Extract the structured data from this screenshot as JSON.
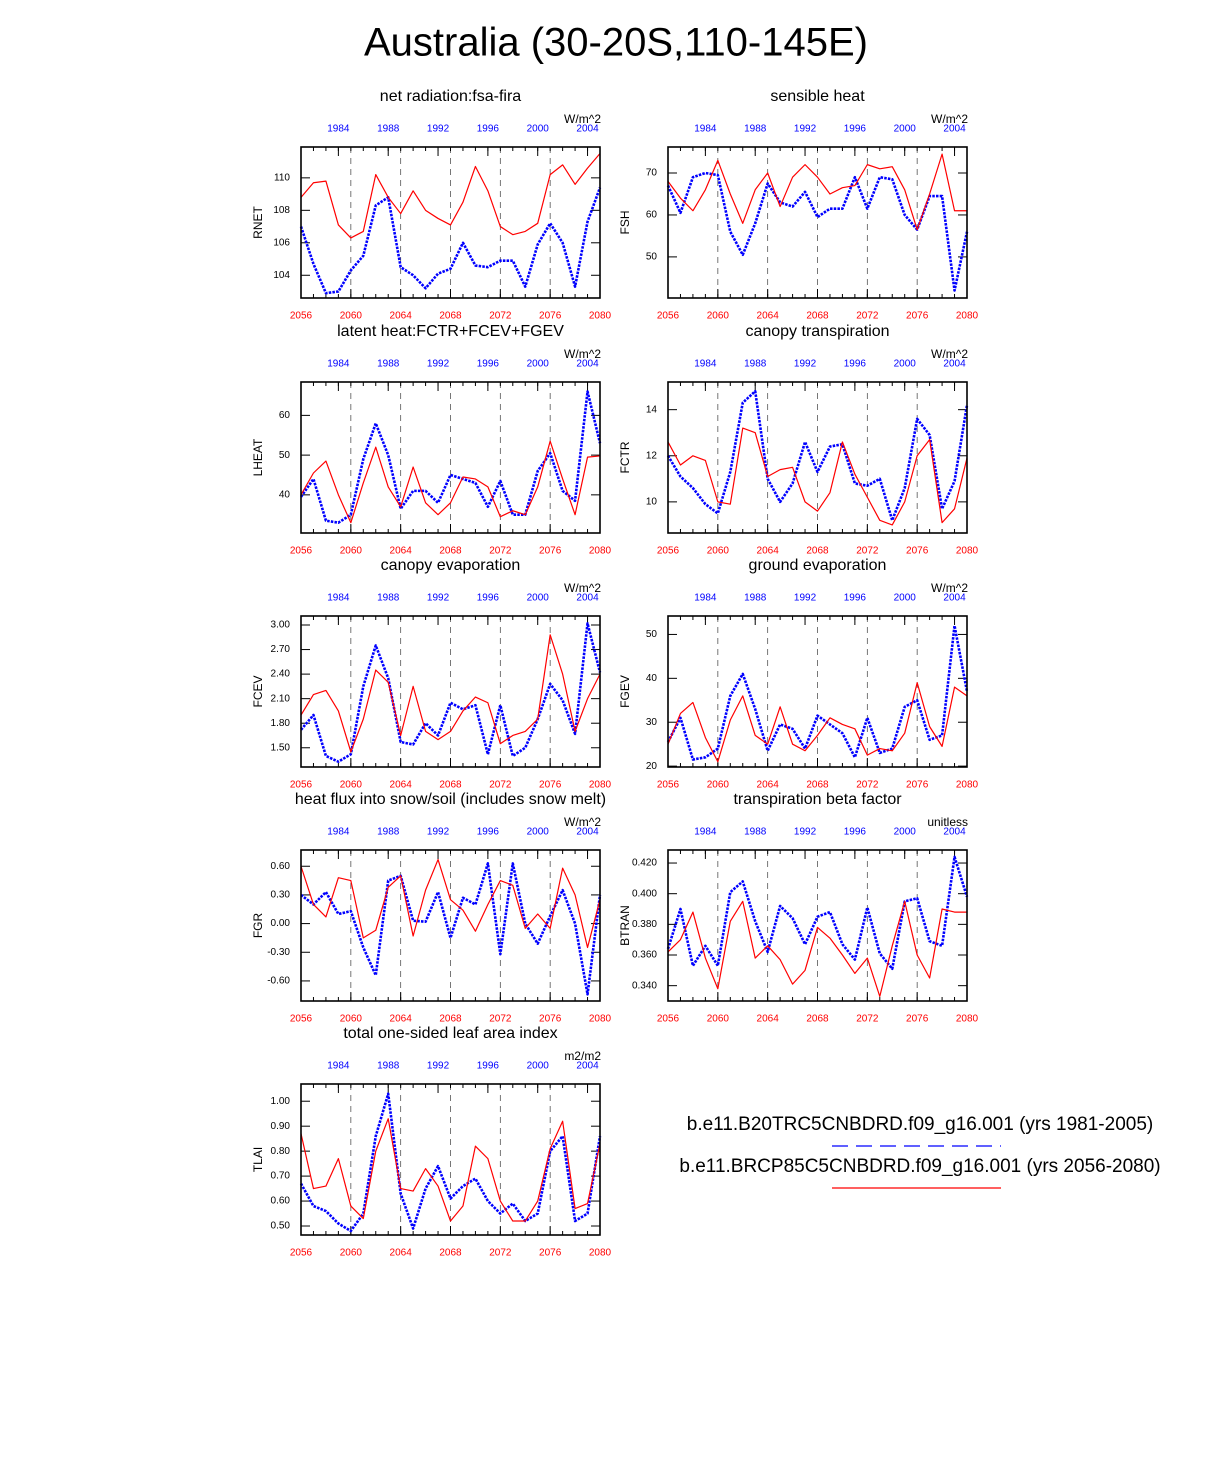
{
  "title": "Australia (30-20S,110-145E)",
  "legend": [
    {
      "name": "b.e11.B20TRC5CNBDRD.f09_g16.001 (yrs 1981-2005)",
      "color": "#0000ff",
      "dashed": true
    },
    {
      "name": "b.e11.BRCP85C5CNBDRD.f09_g16.001 (yrs 2056-2080)",
      "color": "#ff0000",
      "dashed": false
    }
  ],
  "axes": {
    "xlim": [
      2056,
      2080
    ],
    "xticks": [
      2056,
      2060,
      2064,
      2068,
      2072,
      2076,
      2080
    ],
    "x2lim": [
      1981,
      2005
    ],
    "x2ticks": [
      1984,
      1988,
      1992,
      1996,
      2000,
      2004
    ],
    "x": [
      2056,
      2057,
      2058,
      2059,
      2060,
      2061,
      2062,
      2063,
      2064,
      2065,
      2066,
      2067,
      2068,
      2069,
      2070,
      2071,
      2072,
      2073,
      2074,
      2075,
      2076,
      2077,
      2078,
      2079,
      2080
    ],
    "x2": [
      1981,
      1982,
      1983,
      1984,
      1985,
      1986,
      1987,
      1988,
      1989,
      1990,
      1991,
      1992,
      1993,
      1994,
      1995,
      1996,
      1997,
      1998,
      1999,
      2000,
      2001,
      2002,
      2003,
      2004,
      2005
    ],
    "grid": true
  },
  "chart_data": [
    {
      "type": "line",
      "title": "net radiation:fsa-fira",
      "ylabel": "RNET",
      "units": "W/m^2",
      "ylim": [
        102.6,
        111.9
      ],
      "yticks": [
        104,
        106,
        108,
        110
      ],
      "series": [
        {
          "axis": "x2",
          "color": "#0000ff",
          "dashed": true,
          "values": [
            107.0,
            104.7,
            102.9,
            103.0,
            104.3,
            105.2,
            108.3,
            108.8,
            104.5,
            104.0,
            103.2,
            104.1,
            104.4,
            106.0,
            104.6,
            104.5,
            104.9,
            104.9,
            103.3,
            105.9,
            107.2,
            106.0,
            103.3,
            107.3,
            109.4
          ]
        },
        {
          "axis": "x",
          "color": "#ff0000",
          "dashed": false,
          "values": [
            108.8,
            109.7,
            109.8,
            107.1,
            106.3,
            106.7,
            110.2,
            108.8,
            107.8,
            109.2,
            108.0,
            107.5,
            107.1,
            108.5,
            110.7,
            109.2,
            107.0,
            106.5,
            106.7,
            107.2,
            110.2,
            110.8,
            109.6,
            110.6,
            111.5
          ]
        }
      ]
    },
    {
      "type": "line",
      "title": "sensible heat",
      "ylabel": "FSH",
      "units": "W/m^2",
      "ylim": [
        40.2,
        76.2
      ],
      "yticks": [
        50,
        60,
        70
      ],
      "series": [
        {
          "axis": "x2",
          "color": "#0000ff",
          "dashed": true,
          "values": [
            67,
            60.5,
            69,
            70,
            69.5,
            56,
            50.5,
            58,
            67.5,
            63,
            62,
            65.5,
            59.5,
            61.5,
            61.5,
            69,
            61.5,
            69,
            68.5,
            60,
            56.5,
            64.5,
            64.5,
            42,
            56
          ]
        },
        {
          "axis": "x",
          "color": "#ff0000",
          "dashed": false,
          "values": [
            68,
            64,
            61,
            66,
            73,
            65,
            58,
            66,
            70,
            62,
            69,
            72,
            69,
            65,
            66.5,
            67,
            72,
            71,
            71.5,
            66,
            56.5,
            65,
            74.5,
            61,
            61
          ]
        }
      ]
    },
    {
      "type": "line",
      "title": "latent heat:FCTR+FCEV+FGEV",
      "ylabel": "LHEAT",
      "units": "W/m^2",
      "ylim": [
        30.4,
        68.4
      ],
      "yticks": [
        40,
        50,
        60
      ],
      "series": [
        {
          "axis": "x2",
          "color": "#0000ff",
          "dashed": true,
          "values": [
            39.5,
            44,
            33.5,
            33,
            35,
            49,
            58,
            50,
            36.5,
            41,
            41,
            38,
            45,
            44,
            43,
            37,
            43.5,
            35,
            35,
            46,
            50.5,
            41,
            38.5,
            66,
            53
          ]
        },
        {
          "axis": "x",
          "color": "#ff0000",
          "dashed": false,
          "values": [
            40,
            45.5,
            48.5,
            40,
            33,
            43,
            52,
            42,
            37,
            47,
            38,
            35,
            38,
            44.5,
            44,
            42,
            34.5,
            36,
            35,
            42,
            53.5,
            44,
            35,
            49.5,
            49.8
          ]
        }
      ]
    },
    {
      "type": "line",
      "title": "canopy transpiration",
      "ylabel": "FCTR",
      "units": "W/m^2",
      "ylim": [
        8.65,
        15.2
      ],
      "yticks": [
        10,
        12,
        14
      ],
      "series": [
        {
          "axis": "x2",
          "color": "#0000ff",
          "dashed": true,
          "values": [
            12.0,
            11.1,
            10.6,
            9.9,
            9.5,
            11.3,
            14.3,
            14.8,
            11.0,
            10.0,
            10.8,
            12.6,
            11.3,
            12.4,
            12.5,
            10.8,
            10.7,
            11.0,
            9.2,
            10.6,
            13.6,
            12.9,
            9.7,
            10.9,
            14.2
          ]
        },
        {
          "axis": "x",
          "color": "#ff0000",
          "dashed": false,
          "values": [
            12.6,
            11.6,
            12.0,
            11.8,
            10.0,
            9.9,
            13.2,
            13.0,
            11.1,
            11.4,
            11.5,
            10.0,
            9.6,
            10.4,
            12.6,
            11.2,
            10.2,
            9.2,
            9.0,
            10.0,
            12.0,
            12.7,
            9.1,
            9.7,
            11.9
          ]
        }
      ]
    },
    {
      "type": "line",
      "title": "canopy evaporation",
      "ylabel": "FCEV",
      "units": "W/m^2",
      "ylim": [
        1.265,
        3.11
      ],
      "yticks": [
        {
          "value": 1.5,
          "label": "1.50"
        },
        {
          "value": 1.8,
          "label": "1.80"
        },
        {
          "value": 2.1,
          "label": "2.10"
        },
        {
          "value": 2.4,
          "label": "2.40"
        },
        {
          "value": 2.7,
          "label": "2.70"
        },
        {
          "value": 3.0,
          "label": "3.00"
        }
      ],
      "series": [
        {
          "axis": "x2",
          "color": "#0000ff",
          "dashed": true,
          "values": [
            1.72,
            1.9,
            1.4,
            1.33,
            1.42,
            2.25,
            2.75,
            2.35,
            1.57,
            1.54,
            1.8,
            1.65,
            2.05,
            1.97,
            2.02,
            1.42,
            2.02,
            1.4,
            1.5,
            1.85,
            2.28,
            2.08,
            1.67,
            3.02,
            2.42
          ]
        },
        {
          "axis": "x",
          "color": "#ff0000",
          "dashed": false,
          "values": [
            1.9,
            2.15,
            2.2,
            1.95,
            1.45,
            1.85,
            2.45,
            2.3,
            1.65,
            2.25,
            1.7,
            1.6,
            1.7,
            1.95,
            2.12,
            2.05,
            1.55,
            1.65,
            1.7,
            1.85,
            2.88,
            2.4,
            1.7,
            2.1,
            2.4
          ]
        }
      ]
    },
    {
      "type": "line",
      "title": "ground evaporation",
      "ylabel": "FGEV",
      "units": "W/m^2",
      "ylim": [
        19.8,
        54.2
      ],
      "yticks": [
        20,
        30,
        40,
        50
      ],
      "series": [
        {
          "axis": "x2",
          "color": "#0000ff",
          "dashed": true,
          "values": [
            25.5,
            31,
            21.5,
            22,
            24,
            36,
            41,
            33,
            23.5,
            29.5,
            28.5,
            24,
            31.5,
            29.5,
            27.5,
            22,
            31,
            23,
            24,
            33.5,
            35,
            26,
            27,
            52,
            37
          ]
        },
        {
          "axis": "x",
          "color": "#ff0000",
          "dashed": false,
          "values": [
            25,
            32,
            34.5,
            26.5,
            21,
            30.5,
            36,
            27,
            25,
            33.5,
            25,
            23.5,
            27,
            31,
            29.5,
            28.5,
            22.5,
            24,
            23.5,
            27.5,
            39,
            29,
            24.5,
            38,
            36
          ]
        }
      ]
    },
    {
      "type": "line",
      "title": "heat flux into snow/soil (includes snow melt)",
      "ylabel": "FGR",
      "units": "W/m^2",
      "ylim": [
        -0.81,
        0.77
      ],
      "yticks": [
        {
          "value": -0.6,
          "label": "-0.60"
        },
        {
          "value": -0.3,
          "label": "-0.30"
        },
        {
          "value": 0,
          "label": "0.00"
        },
        {
          "value": 0.3,
          "label": "0.30"
        },
        {
          "value": 0.6,
          "label": "0.60"
        }
      ],
      "series": [
        {
          "axis": "x2",
          "color": "#0000ff",
          "dashed": true,
          "values": [
            0.3,
            0.2,
            0.33,
            0.1,
            0.13,
            -0.25,
            -0.54,
            0.45,
            0.5,
            0.03,
            0.02,
            0.33,
            -0.15,
            0.27,
            0.2,
            0.63,
            -0.32,
            0.63,
            0.0,
            -0.21,
            0.08,
            0.35,
            0.0,
            -0.74,
            0.3
          ]
        },
        {
          "axis": "x",
          "color": "#ff0000",
          "dashed": false,
          "values": [
            0.6,
            0.2,
            0.07,
            0.48,
            0.45,
            -0.15,
            -0.07,
            0.38,
            0.5,
            -0.13,
            0.35,
            0.67,
            0.25,
            0.14,
            -0.08,
            0.2,
            0.45,
            0.4,
            -0.05,
            0.1,
            -0.05,
            0.58,
            0.3,
            -0.25,
            0.25
          ]
        }
      ]
    },
    {
      "type": "line",
      "title": "transpiration beta factor",
      "ylabel": "BTRAN",
      "units": "unitless",
      "ylim": [
        0.33,
        0.4285
      ],
      "yticks": [
        {
          "value": 0.34,
          "label": "0.340"
        },
        {
          "value": 0.36,
          "label": "0.360"
        },
        {
          "value": 0.38,
          "label": "0.380"
        },
        {
          "value": 0.4,
          "label": "0.400"
        },
        {
          "value": 0.42,
          "label": "0.420"
        }
      ],
      "series": [
        {
          "axis": "x2",
          "color": "#0000ff",
          "dashed": true,
          "values": [
            0.364,
            0.39,
            0.353,
            0.366,
            0.353,
            0.401,
            0.408,
            0.382,
            0.362,
            0.392,
            0.384,
            0.367,
            0.385,
            0.388,
            0.367,
            0.357,
            0.391,
            0.361,
            0.351,
            0.395,
            0.397,
            0.369,
            0.366,
            0.424,
            0.398
          ]
        },
        {
          "axis": "x",
          "color": "#ff0000",
          "dashed": false,
          "values": [
            0.362,
            0.37,
            0.388,
            0.358,
            0.338,
            0.382,
            0.395,
            0.358,
            0.366,
            0.357,
            0.341,
            0.35,
            0.378,
            0.371,
            0.36,
            0.348,
            0.358,
            0.333,
            0.366,
            0.395,
            0.36,
            0.345,
            0.39,
            0.388,
            0.388
          ]
        }
      ]
    },
    {
      "type": "line",
      "title": "total one-sided leaf area index",
      "ylabel": "TLAI",
      "units": "m2/m2",
      "ylim": [
        0.464,
        1.069
      ],
      "yticks": [
        {
          "value": 0.5,
          "label": "0.50"
        },
        {
          "value": 0.6,
          "label": "0.60"
        },
        {
          "value": 0.7,
          "label": "0.70"
        },
        {
          "value": 0.8,
          "label": "0.80"
        },
        {
          "value": 0.9,
          "label": "0.90"
        },
        {
          "value": 1.0,
          "label": "1.00"
        }
      ],
      "series": [
        {
          "axis": "x2",
          "color": "#0000ff",
          "dashed": true,
          "values": [
            0.67,
            0.58,
            0.56,
            0.51,
            0.48,
            0.55,
            0.86,
            1.03,
            0.63,
            0.49,
            0.65,
            0.74,
            0.61,
            0.66,
            0.69,
            0.6,
            0.55,
            0.59,
            0.52,
            0.55,
            0.8,
            0.86,
            0.52,
            0.55,
            0.86
          ]
        },
        {
          "axis": "x",
          "color": "#ff0000",
          "dashed": false,
          "values": [
            0.87,
            0.65,
            0.66,
            0.77,
            0.58,
            0.53,
            0.8,
            0.93,
            0.65,
            0.64,
            0.73,
            0.66,
            0.52,
            0.58,
            0.82,
            0.77,
            0.6,
            0.52,
            0.52,
            0.6,
            0.81,
            0.92,
            0.57,
            0.59,
            0.83
          ]
        }
      ]
    }
  ]
}
